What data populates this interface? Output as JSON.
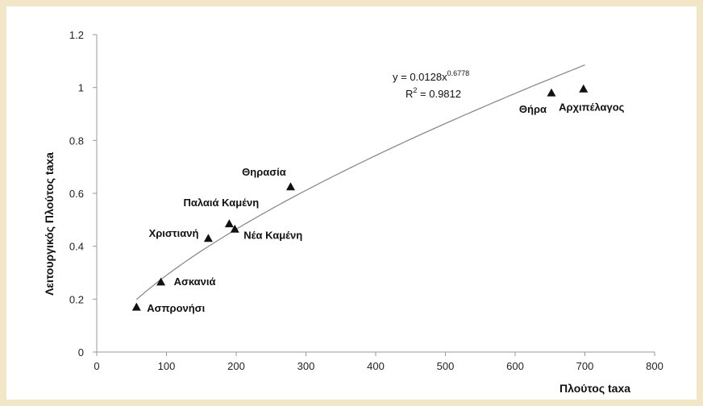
{
  "chart_data": {
    "type": "scatter",
    "title": "",
    "xlabel": "Πλούτος taxa",
    "ylabel": "Λειτουργικός Πλούτος taxa",
    "xlim": [
      0,
      800
    ],
    "ylim": [
      0,
      1.2
    ],
    "x_ticks": [
      "0",
      "100",
      "200",
      "300",
      "400",
      "500",
      "600",
      "700",
      "800"
    ],
    "y_ticks": [
      "0",
      "0.2",
      "0.4",
      "0.6",
      "0.8",
      "1",
      "1.2"
    ],
    "x_tick_values": [
      0,
      100,
      200,
      300,
      400,
      500,
      600,
      700,
      800
    ],
    "y_tick_values": [
      0,
      0.2,
      0.4,
      0.6,
      0.8,
      1,
      1.2
    ],
    "grid": false,
    "points": [
      {
        "label": "Ασπρονήσι",
        "x": 57,
        "y": 0.17
      },
      {
        "label": "Ασκανιά",
        "x": 92,
        "y": 0.265
      },
      {
        "label": "Χριστιανή",
        "x": 160,
        "y": 0.43
      },
      {
        "label": "Παλαιά Καμένη",
        "x": 190,
        "y": 0.485
      },
      {
        "label": "Νέα Καμένη",
        "x": 198,
        "y": 0.465
      },
      {
        "label": "Θηρασία",
        "x": 278,
        "y": 0.625
      },
      {
        "label": "Θήρα",
        "x": 652,
        "y": 0.98
      },
      {
        "label": "Αρχιπέλαγος",
        "x": 698,
        "y": 0.995
      }
    ],
    "trendline": {
      "type": "power",
      "a": 0.0128,
      "b": 0.6778,
      "x_range": [
        57,
        700
      ],
      "equation_base": "y = 0.0128x",
      "equation_exp": "0.6778",
      "r2_prefix": "R",
      "r2_sup": "2",
      "r2_value": " = 0.9812"
    },
    "colors": {
      "marker": "#111111",
      "trendline": "#8c8c8c",
      "axis": "#9a9a9a"
    }
  }
}
